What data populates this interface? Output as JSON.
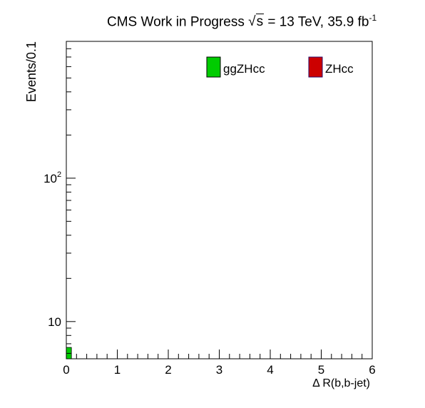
{
  "title": {
    "prefix": "CMS Work in Progress",
    "energy_symbol": "s",
    "energy_text": " = 13 TeV, 35.9 fb",
    "lumi_exponent": "-1"
  },
  "chart_data": {
    "type": "bar",
    "title": "CMS Work in Progress √s = 13 TeV, 35.9 fb-1",
    "xlabel": "Δ R(b,b-jet)",
    "ylabel": "Events/0.1",
    "xlim": [
      0,
      6
    ],
    "ylim": [
      5.5,
      900
    ],
    "yscale": "log",
    "bin_width": 0.1,
    "x_ticks": [
      {
        "value": 0,
        "label": "0"
      },
      {
        "value": 1,
        "label": "1"
      },
      {
        "value": 2,
        "label": "2"
      },
      {
        "value": 3,
        "label": "3"
      },
      {
        "value": 4,
        "label": "4"
      },
      {
        "value": 5,
        "label": "5"
      },
      {
        "value": 6,
        "label": "6"
      }
    ],
    "y_tick_labels": [
      {
        "value": 10,
        "label": "10"
      },
      {
        "value": 100,
        "label": "10",
        "exponent": "2"
      }
    ],
    "legend_position": "top",
    "series": [
      {
        "name": "ggZHcc",
        "color": "#00cc00",
        "stroke": "#000000",
        "bins": [
          {
            "x0": 0.0,
            "x1": 0.1,
            "value": 6.6
          }
        ]
      },
      {
        "name": "ZHcc",
        "color": "#cc0000",
        "stroke": "#2a0a6a",
        "bins": []
      }
    ]
  }
}
